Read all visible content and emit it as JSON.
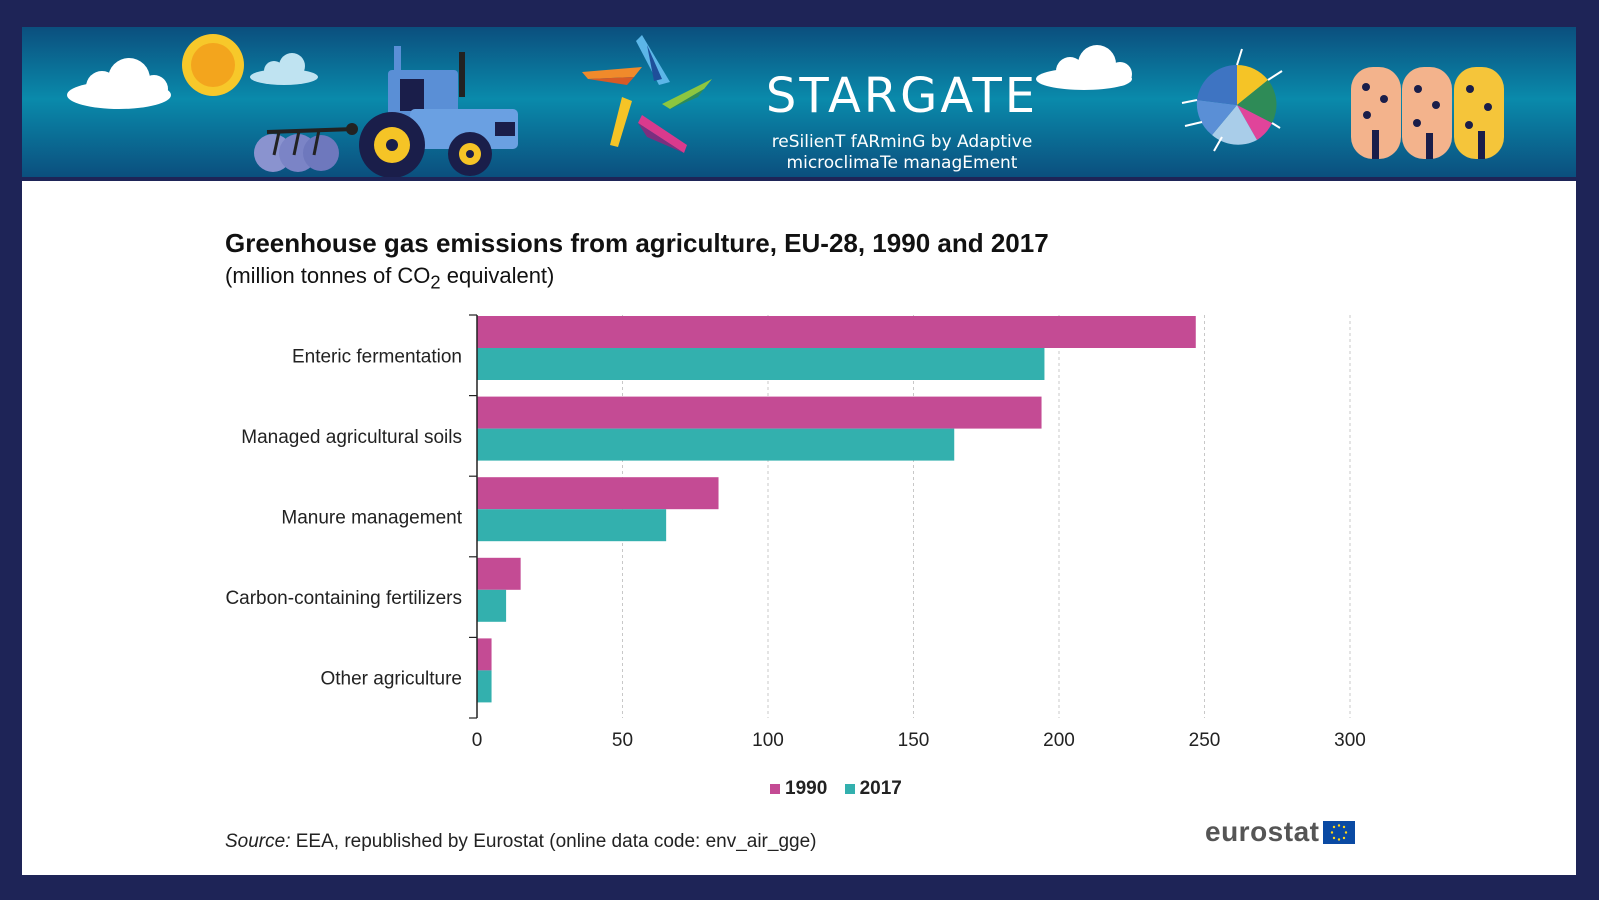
{
  "banner": {
    "title": "STARGATE",
    "subtitle_line1": "reSilienT fARminG by Adaptive",
    "subtitle_line2": "microclimaTe managEment"
  },
  "chart": {
    "title": "Greenhouse gas emissions from agriculture, EU-28, 1990 and 2017",
    "subtitle_prefix": "(million  tonnes of CO",
    "subtitle_sub": "2",
    "subtitle_suffix": " equivalent)"
  },
  "source": {
    "label": "Source:",
    "text": " EEA, republished by Eurostat (online data code: env_air_gge)"
  },
  "logo": {
    "text": "eurostat"
  },
  "chart_data": {
    "type": "bar",
    "orientation": "horizontal",
    "categories": [
      "Enteric fermentation",
      "Managed agricultural soils",
      "Manure management",
      "Carbon-containing fertilizers",
      "Other agriculture"
    ],
    "series": [
      {
        "name": "1990",
        "values": [
          247,
          194,
          83,
          15,
          5
        ],
        "color": "#c44b94"
      },
      {
        "name": "2017",
        "values": [
          195,
          164,
          65,
          10,
          5
        ],
        "color": "#33b0ae"
      }
    ],
    "xlim": [
      0,
      300
    ],
    "xticks": [
      "0",
      "50",
      "100",
      "150",
      "200",
      "250",
      "300"
    ],
    "grid": "vertical dashed",
    "legend_position": "bottom-center"
  }
}
